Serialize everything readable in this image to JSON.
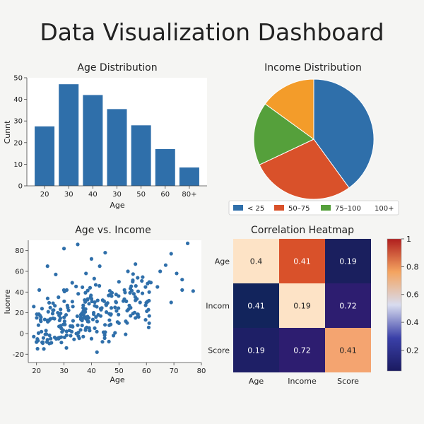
{
  "dashboard": {
    "title": "Data Visualization Dashboard"
  },
  "chart_data": [
    {
      "type": "bar",
      "title": "Age Distribution",
      "xlabel": "Age",
      "ylabel": "Cunnt",
      "categories": [
        "20",
        "30",
        "40",
        "30",
        "50",
        "60",
        "80+"
      ],
      "values": [
        27.5,
        47,
        42,
        35.5,
        28,
        17,
        8.5
      ],
      "ylim": [
        0,
        50
      ],
      "yticks": [
        0,
        10,
        20,
        30,
        40,
        50
      ],
      "color": "#2f6faa"
    },
    {
      "type": "pie",
      "title": "Income Distribution",
      "labels": [
        "< 25",
        "50–75",
        "75–100",
        "100+"
      ],
      "values": [
        40,
        28,
        17,
        15
      ],
      "colors": [
        "#2f6faa",
        "#d9512a",
        "#55a03b",
        "#f39c2a"
      ],
      "legend_position": "bottom"
    },
    {
      "type": "scatter",
      "title": "Age vs. Income",
      "xlabel": "Age",
      "ylabel": "Iuonre",
      "xlim": [
        17,
        80
      ],
      "ylim": [
        -28,
        90
      ],
      "xticks": [
        20,
        30,
        40,
        50,
        60,
        70,
        80
      ],
      "yticks": [
        -20,
        0,
        20,
        40,
        60,
        80
      ],
      "color": "#2f6faa",
      "points": [
        [
          35,
          86
        ],
        [
          30,
          82
        ],
        [
          75,
          87
        ],
        [
          69,
          77
        ],
        [
          45,
          78
        ],
        [
          67,
          66
        ],
        [
          56,
          67
        ],
        [
          55,
          50
        ],
        [
          65,
          60
        ],
        [
          71,
          58
        ],
        [
          73,
          52
        ],
        [
          77,
          41
        ],
        [
          73,
          42
        ],
        [
          64,
          45
        ],
        [
          52,
          42
        ],
        [
          61,
          40
        ],
        [
          69,
          30
        ],
        [
          40,
          72
        ],
        [
          43,
          65
        ],
        [
          38,
          58
        ],
        [
          41,
          53
        ],
        [
          33,
          49
        ],
        [
          27,
          57
        ],
        [
          24,
          65
        ],
        [
          21,
          42
        ],
        [
          19,
          26
        ],
        [
          22,
          24
        ],
        [
          19,
          -3
        ],
        [
          20,
          -8
        ],
        [
          24,
          -6
        ],
        [
          28,
          -5
        ],
        [
          29,
          5
        ],
        [
          32,
          3
        ],
        [
          37,
          -3
        ],
        [
          40,
          -5
        ],
        [
          44,
          -8
        ],
        [
          48,
          -2
        ],
        [
          50,
          10
        ],
        [
          47,
          18
        ],
        [
          56,
          15
        ],
        [
          56,
          32
        ],
        [
          49,
          30
        ],
        [
          53,
          22
        ],
        [
          61,
          10
        ],
        [
          28,
          35
        ],
        [
          25,
          25
        ],
        [
          31,
          42
        ],
        [
          42,
          -18
        ],
        [
          35,
          8
        ],
        [
          39,
          15
        ]
      ]
    },
    {
      "type": "heatmap",
      "title": "Correlation Heatmap",
      "xlabels": [
        "Age",
        "Income",
        "Score"
      ],
      "ylabels": [
        "Age",
        "Incom",
        "Score"
      ],
      "values": [
        [
          0.4,
          0.41,
          0.19
        ],
        [
          0.41,
          0.19,
          0.72
        ],
        [
          0.19,
          0.72,
          0.41
        ]
      ],
      "display_values": [
        [
          "0.4",
          "0.41",
          "0.19"
        ],
        [
          "0.41",
          "0.19",
          "0.72"
        ],
        [
          "0.19",
          "0.72",
          "0.41"
        ]
      ],
      "colors": [
        [
          "#fde3c6",
          "#d9512a",
          "#1a1f5e"
        ],
        [
          "#12245c",
          "#fde3c6",
          "#2d1d70"
        ],
        [
          "#1e1f66",
          "#2d1d70",
          "#f4a470"
        ]
      ],
      "colorbar_ticks": [
        0.2,
        0.4,
        0.6,
        0.8,
        1
      ],
      "colorbar_range": [
        0.05,
        1
      ],
      "colorbar_stops": [
        "#1a1a60",
        "#3a40a8",
        "#d8dcef",
        "#f4a460",
        "#b01e1e"
      ]
    }
  ]
}
